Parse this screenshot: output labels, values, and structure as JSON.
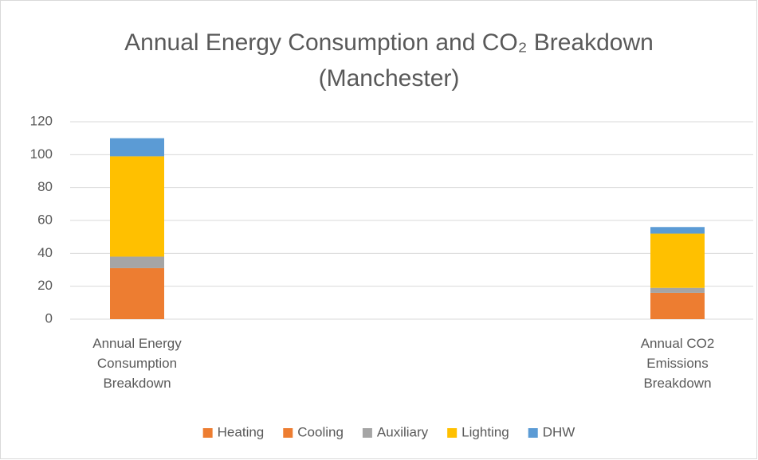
{
  "chart_data": {
    "type": "stacked_bar",
    "title": [
      "Annual Energy Consumption and CO₂ Breakdown",
      "(Manchester)"
    ],
    "categories": [
      "Annual Energy Consumption Breakdown",
      "Annual CO2 Emissions Breakdown"
    ],
    "series": [
      {
        "name": "Heating",
        "color": "#ED7D31",
        "values": [
          31,
          16
        ]
      },
      {
        "name": "Cooling",
        "color": "#ED7D31",
        "values": [
          0,
          0
        ]
      },
      {
        "name": "Auxiliary",
        "color": "#A5A5A5",
        "values": [
          7,
          3
        ]
      },
      {
        "name": "Lighting",
        "color": "#FFC000",
        "values": [
          61,
          33
        ]
      },
      {
        "name": "DHW",
        "color": "#5B9BD5",
        "values": [
          11,
          4
        ]
      }
    ],
    "ylim": [
      0,
      120
    ],
    "yticks": [
      0,
      20,
      40,
      60,
      80,
      100,
      120
    ],
    "grid": true,
    "legend": "bottom"
  }
}
